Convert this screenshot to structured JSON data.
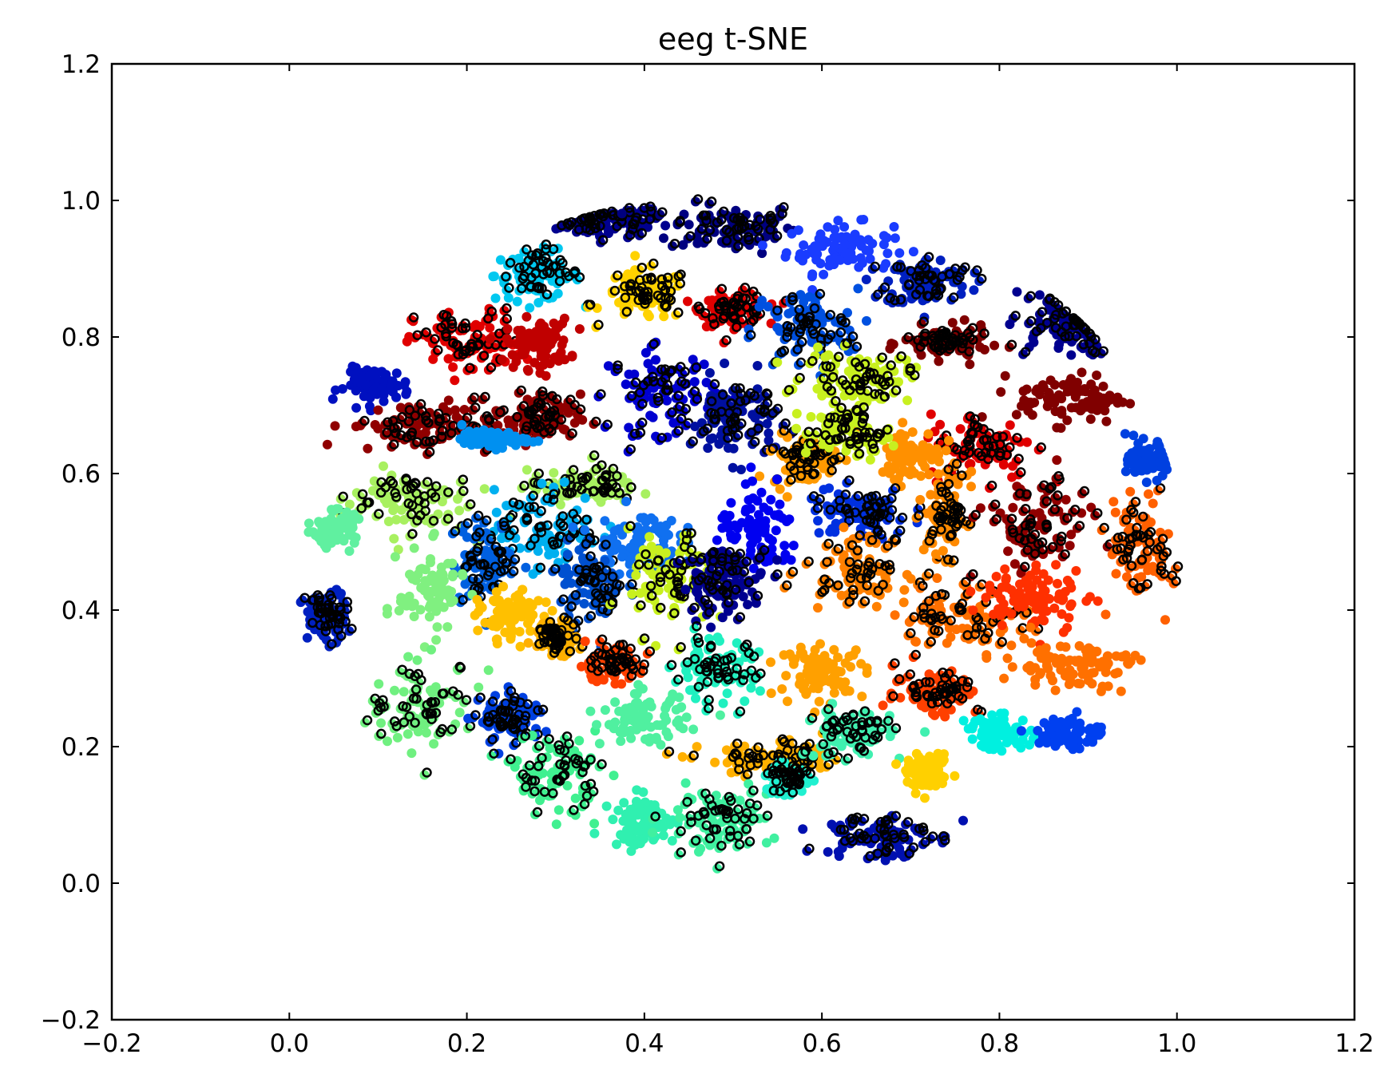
{
  "chart_data": {
    "type": "scatter",
    "title": "eeg t-SNE",
    "xlabel": "",
    "ylabel": "",
    "xlim": [
      -0.2,
      1.2
    ],
    "ylim": [
      -0.2,
      1.2
    ],
    "xticks": [
      -0.2,
      0.0,
      0.2,
      0.4,
      0.6,
      0.8,
      1.0,
      1.2
    ],
    "yticks": [
      -0.2,
      0.0,
      0.2,
      0.4,
      0.6,
      0.8,
      1.0,
      1.2
    ],
    "xtick_labels": [
      "−0.2",
      "0.0",
      "0.2",
      "0.4",
      "0.6",
      "0.8",
      "1.0",
      "1.2"
    ],
    "ytick_labels": [
      "−0.2",
      "0.0",
      "0.2",
      "0.4",
      "0.6",
      "0.8",
      "1.0",
      "1.2"
    ],
    "grid": false,
    "legend": "none",
    "colormap": "jet",
    "marker_style": "filled points plus black-edged open circles over some clusters",
    "clusters": [
      {
        "cx": 0.36,
        "cy": 0.97,
        "sx": 0.05,
        "sy": 0.02,
        "color": "#00008f",
        "hollow": true
      },
      {
        "cx": 0.5,
        "cy": 0.96,
        "sx": 0.06,
        "sy": 0.03,
        "color": "#000080",
        "hollow": true
      },
      {
        "cx": 0.62,
        "cy": 0.93,
        "sx": 0.05,
        "sy": 0.03,
        "color": "#1a3cff",
        "hollow": false
      },
      {
        "cx": 0.28,
        "cy": 0.89,
        "sx": 0.04,
        "sy": 0.03,
        "color": "#00c8f0",
        "hollow": true
      },
      {
        "cx": 0.4,
        "cy": 0.86,
        "sx": 0.04,
        "sy": 0.03,
        "color": "#ffd200",
        "hollow": true
      },
      {
        "cx": 0.5,
        "cy": 0.84,
        "sx": 0.03,
        "sy": 0.02,
        "color": "#e00000",
        "hollow": true
      },
      {
        "cx": 0.58,
        "cy": 0.81,
        "sx": 0.05,
        "sy": 0.05,
        "color": "#0050e0",
        "hollow": true
      },
      {
        "cx": 0.72,
        "cy": 0.88,
        "sx": 0.04,
        "sy": 0.03,
        "color": "#0020c0",
        "hollow": true
      },
      {
        "cx": 0.87,
        "cy": 0.82,
        "sx": 0.05,
        "sy": 0.04,
        "color": "#00008f",
        "hollow": true
      },
      {
        "cx": 0.2,
        "cy": 0.79,
        "sx": 0.05,
        "sy": 0.04,
        "color": "#e00000",
        "hollow": true
      },
      {
        "cx": 0.28,
        "cy": 0.79,
        "sx": 0.03,
        "sy": 0.03,
        "color": "#c00000",
        "hollow": false
      },
      {
        "cx": 0.1,
        "cy": 0.73,
        "sx": 0.03,
        "sy": 0.02,
        "color": "#0010c0",
        "hollow": false
      },
      {
        "cx": 0.42,
        "cy": 0.72,
        "sx": 0.05,
        "sy": 0.05,
        "color": "#0000d0",
        "hollow": true
      },
      {
        "cx": 0.5,
        "cy": 0.68,
        "sx": 0.04,
        "sy": 0.05,
        "color": "#0010a0",
        "hollow": true
      },
      {
        "cx": 0.74,
        "cy": 0.79,
        "sx": 0.04,
        "sy": 0.02,
        "color": "#800000",
        "hollow": true
      },
      {
        "cx": 0.64,
        "cy": 0.74,
        "sx": 0.05,
        "sy": 0.03,
        "color": "#c8f020",
        "hollow": true
      },
      {
        "cx": 0.15,
        "cy": 0.67,
        "sx": 0.07,
        "sy": 0.03,
        "color": "#900000",
        "hollow": true
      },
      {
        "cx": 0.28,
        "cy": 0.68,
        "sx": 0.04,
        "sy": 0.03,
        "color": "#900000",
        "hollow": true
      },
      {
        "cx": 0.88,
        "cy": 0.71,
        "sx": 0.05,
        "sy": 0.03,
        "color": "#800000",
        "hollow": false
      },
      {
        "cx": 0.78,
        "cy": 0.64,
        "sx": 0.05,
        "sy": 0.04,
        "color": "#e00000",
        "hollow": true
      },
      {
        "cx": 0.7,
        "cy": 0.63,
        "sx": 0.03,
        "sy": 0.03,
        "color": "#ff9000",
        "hollow": false
      },
      {
        "cx": 0.58,
        "cy": 0.62,
        "sx": 0.03,
        "sy": 0.03,
        "color": "#ff9a00",
        "hollow": true
      },
      {
        "cx": 0.63,
        "cy": 0.66,
        "sx": 0.04,
        "sy": 0.03,
        "color": "#c8f020",
        "hollow": true
      },
      {
        "cx": 0.23,
        "cy": 0.65,
        "sx": 0.03,
        "sy": 0.01,
        "color": "#0090f0",
        "hollow": false
      },
      {
        "cx": 0.13,
        "cy": 0.56,
        "sx": 0.06,
        "sy": 0.04,
        "color": "#a8f060",
        "hollow": true
      },
      {
        "cx": 0.33,
        "cy": 0.58,
        "sx": 0.05,
        "sy": 0.02,
        "color": "#a8f060",
        "hollow": true
      },
      {
        "cx": 0.29,
        "cy": 0.52,
        "sx": 0.05,
        "sy": 0.05,
        "color": "#00b0f0",
        "hollow": true
      },
      {
        "cx": 0.22,
        "cy": 0.47,
        "sx": 0.03,
        "sy": 0.05,
        "color": "#0060e0",
        "hollow": true
      },
      {
        "cx": 0.39,
        "cy": 0.5,
        "sx": 0.04,
        "sy": 0.04,
        "color": "#1070f0",
        "hollow": false
      },
      {
        "cx": 0.34,
        "cy": 0.44,
        "sx": 0.03,
        "sy": 0.05,
        "color": "#0050d0",
        "hollow": true
      },
      {
        "cx": 0.43,
        "cy": 0.44,
        "sx": 0.04,
        "sy": 0.06,
        "color": "#c8f020",
        "hollow": true
      },
      {
        "cx": 0.53,
        "cy": 0.51,
        "sx": 0.04,
        "sy": 0.05,
        "color": "#0000f0",
        "hollow": false
      },
      {
        "cx": 0.64,
        "cy": 0.54,
        "sx": 0.05,
        "sy": 0.03,
        "color": "#0030e0",
        "hollow": true
      },
      {
        "cx": 0.64,
        "cy": 0.46,
        "sx": 0.05,
        "sy": 0.04,
        "color": "#ff8000",
        "hollow": true
      },
      {
        "cx": 0.74,
        "cy": 0.54,
        "sx": 0.02,
        "sy": 0.05,
        "color": "#ff8a00",
        "hollow": true
      },
      {
        "cx": 0.84,
        "cy": 0.52,
        "sx": 0.05,
        "sy": 0.06,
        "color": "#900000",
        "hollow": true
      },
      {
        "cx": 0.96,
        "cy": 0.49,
        "sx": 0.03,
        "sy": 0.06,
        "color": "#ff6000",
        "hollow": true
      },
      {
        "cx": 0.16,
        "cy": 0.43,
        "sx": 0.03,
        "sy": 0.05,
        "color": "#80f080",
        "hollow": false
      },
      {
        "cx": 0.04,
        "cy": 0.39,
        "sx": 0.02,
        "sy": 0.03,
        "color": "#0020c0",
        "hollow": true
      },
      {
        "cx": 0.25,
        "cy": 0.39,
        "sx": 0.03,
        "sy": 0.03,
        "color": "#ffc000",
        "hollow": false
      },
      {
        "cx": 0.3,
        "cy": 0.36,
        "sx": 0.02,
        "sy": 0.02,
        "color": "#ffb000",
        "hollow": true
      },
      {
        "cx": 0.49,
        "cy": 0.44,
        "sx": 0.04,
        "sy": 0.04,
        "color": "#000090",
        "hollow": true
      },
      {
        "cx": 0.76,
        "cy": 0.39,
        "sx": 0.06,
        "sy": 0.04,
        "color": "#ff7000",
        "hollow": true
      },
      {
        "cx": 0.84,
        "cy": 0.42,
        "sx": 0.05,
        "sy": 0.04,
        "color": "#ff3000",
        "hollow": false
      },
      {
        "cx": 0.88,
        "cy": 0.32,
        "sx": 0.06,
        "sy": 0.03,
        "color": "#ff7000",
        "hollow": false
      },
      {
        "cx": 0.36,
        "cy": 0.32,
        "sx": 0.03,
        "sy": 0.02,
        "color": "#ff4000",
        "hollow": true
      },
      {
        "cx": 0.48,
        "cy": 0.31,
        "sx": 0.04,
        "sy": 0.04,
        "color": "#20f0c0",
        "hollow": true
      },
      {
        "cx": 0.6,
        "cy": 0.31,
        "sx": 0.04,
        "sy": 0.03,
        "color": "#ffa000",
        "hollow": false
      },
      {
        "cx": 0.73,
        "cy": 0.28,
        "sx": 0.04,
        "sy": 0.03,
        "color": "#ff4000",
        "hollow": true
      },
      {
        "cx": 0.15,
        "cy": 0.26,
        "sx": 0.05,
        "sy": 0.05,
        "color": "#70f080",
        "hollow": true
      },
      {
        "cx": 0.25,
        "cy": 0.24,
        "sx": 0.03,
        "sy": 0.03,
        "color": "#0040e0",
        "hollow": true
      },
      {
        "cx": 0.3,
        "cy": 0.16,
        "sx": 0.04,
        "sy": 0.05,
        "color": "#40f090",
        "hollow": true
      },
      {
        "cx": 0.4,
        "cy": 0.24,
        "sx": 0.04,
        "sy": 0.03,
        "color": "#50f0a0",
        "hollow": false
      },
      {
        "cx": 0.55,
        "cy": 0.18,
        "sx": 0.07,
        "sy": 0.02,
        "color": "#ffb000",
        "hollow": true
      },
      {
        "cx": 0.63,
        "cy": 0.22,
        "sx": 0.04,
        "sy": 0.03,
        "color": "#40f0b0",
        "hollow": true
      },
      {
        "cx": 0.8,
        "cy": 0.22,
        "sx": 0.03,
        "sy": 0.02,
        "color": "#00f0e0",
        "hollow": false
      },
      {
        "cx": 0.88,
        "cy": 0.22,
        "sx": 0.03,
        "sy": 0.02,
        "color": "#0040f0",
        "hollow": false
      },
      {
        "cx": 0.72,
        "cy": 0.16,
        "sx": 0.02,
        "sy": 0.02,
        "color": "#ffd000",
        "hollow": false
      },
      {
        "cx": 0.4,
        "cy": 0.09,
        "sx": 0.03,
        "sy": 0.03,
        "color": "#30f0b0",
        "hollow": false
      },
      {
        "cx": 0.48,
        "cy": 0.09,
        "sx": 0.05,
        "sy": 0.04,
        "color": "#40f0a0",
        "hollow": true
      },
      {
        "cx": 0.66,
        "cy": 0.07,
        "sx": 0.05,
        "sy": 0.03,
        "color": "#0010b0",
        "hollow": true
      },
      {
        "cx": 0.56,
        "cy": 0.15,
        "sx": 0.02,
        "sy": 0.02,
        "color": "#20f0d0",
        "hollow": true
      },
      {
        "cx": 0.97,
        "cy": 0.62,
        "sx": 0.02,
        "sy": 0.02,
        "color": "#0040e0",
        "hollow": false
      },
      {
        "cx": 0.05,
        "cy": 0.52,
        "sx": 0.02,
        "sy": 0.02,
        "color": "#60f0a0",
        "hollow": false
      }
    ]
  }
}
